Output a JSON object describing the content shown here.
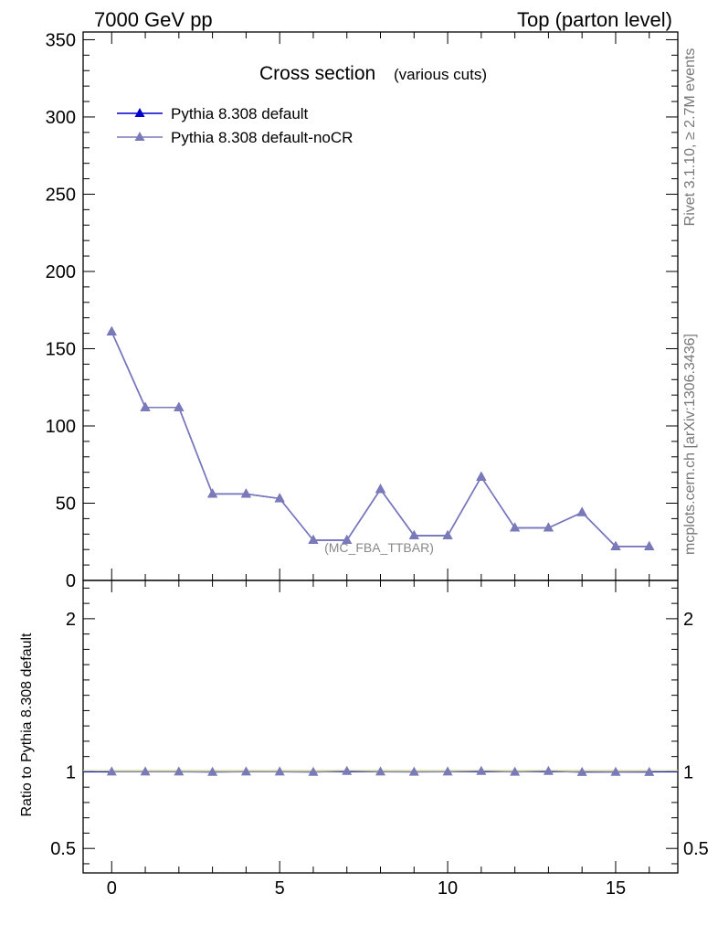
{
  "header": {
    "left": "7000 GeV pp",
    "right": "Top (parton level)"
  },
  "side_text": {
    "rivet": "Rivet 3.1.10, ≥ 2.7M events",
    "mcplots": "mcplots.cern.ch [arXiv:1306.3436]"
  },
  "watermark": "(MC_FBA_TTBAR)",
  "chart_data": [
    {
      "type": "line",
      "title": "Cross section",
      "subtitle": "(various cuts)",
      "xlim": [
        -0.85,
        16.85
      ],
      "ylim": [
        0,
        355
      ],
      "yticks": [
        0,
        50,
        100,
        150,
        200,
        250,
        300,
        350
      ],
      "ytick_labels": [
        "0",
        "50",
        "100",
        "150",
        "200",
        "250",
        "300",
        "350"
      ],
      "legend_position": "top-left",
      "x": [
        0,
        1,
        2,
        3,
        4,
        5,
        6,
        7,
        8,
        9,
        10,
        11,
        12,
        13,
        14,
        15,
        16
      ],
      "series": [
        {
          "name": "Pythia 8.308 default",
          "color": "#0000cc",
          "values": [
            161,
            112,
            112,
            56,
            56,
            53,
            26,
            26,
            59,
            29,
            29,
            67,
            34,
            34,
            44,
            22,
            22
          ]
        },
        {
          "name": "Pythia 8.308 default-noCR",
          "color": "#7a7ab8",
          "values": [
            161,
            112,
            112,
            56,
            56,
            53,
            26,
            26,
            59,
            29,
            29,
            67,
            34,
            34,
            44,
            22,
            22
          ]
        }
      ]
    },
    {
      "type": "line",
      "ylabel": "Ratio to Pythia 8.308 default",
      "xlim": [
        -0.85,
        16.85
      ],
      "ylim": [
        0.34,
        2.25
      ],
      "xticks": [
        0,
        5,
        10,
        15
      ],
      "xtick_labels": [
        "0",
        "5",
        "10",
        "15"
      ],
      "yticks": [
        0.5,
        1,
        2
      ],
      "ytick_labels": [
        "0.5",
        "1",
        "2"
      ],
      "x": [
        0,
        1,
        2,
        3,
        4,
        5,
        6,
        7,
        8,
        9,
        10,
        11,
        12,
        13,
        14,
        15,
        16
      ],
      "series": [
        {
          "name": "Pythia 8.308 default-noCR",
          "color": "#7a7ab8",
          "values": [
            1.0,
            1.0,
            1.0,
            0.998,
            1.0,
            1.0,
            0.998,
            1.004,
            1.0,
            0.999,
            1.0,
            1.004,
            0.999,
            1.004,
            0.997,
            0.998,
            0.997
          ]
        }
      ]
    }
  ]
}
